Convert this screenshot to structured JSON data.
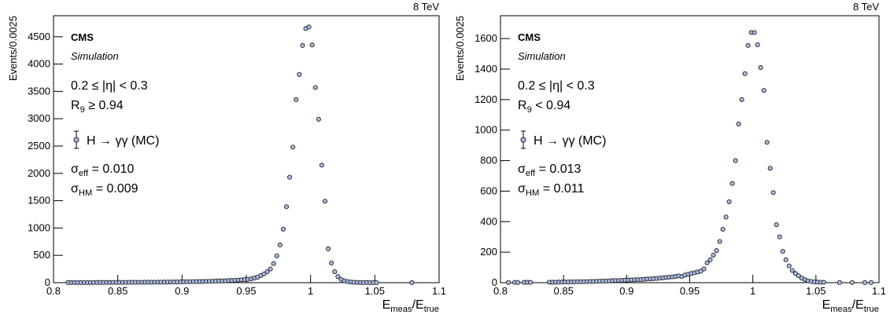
{
  "chart_data": [
    {
      "type": "scatter",
      "energy": "8 TeV",
      "experiment": "CMS",
      "status": "Simulation",
      "annotations": [
        [
          {
            "text": "0.2 ≤ |η| < 0.3"
          }
        ],
        [
          {
            "text": "R"
          },
          {
            "text": "9",
            "sub": true
          },
          {
            "text": " ≥ 0.94"
          }
        ],
        [
          {
            "text": "σ"
          },
          {
            "text": "eff",
            "sub": true
          },
          {
            "text": " = 0.010"
          }
        ],
        [
          {
            "text": "σ"
          },
          {
            "text": "HM",
            "sub": true
          },
          {
            "text": " = 0.009"
          }
        ]
      ],
      "x_label": [
        {
          "text": "E"
        },
        {
          "text": "meas",
          "sub": true
        },
        {
          "text": "/E"
        },
        {
          "text": "true",
          "sub": true
        }
      ],
      "y_label": "Events/0.0025",
      "xlim": [
        0.8,
        1.1
      ],
      "xticks": [
        0.8,
        0.85,
        0.9,
        0.95,
        1,
        1.05,
        1.1
      ],
      "ylim": [
        0,
        4885
      ],
      "yticks": [
        0,
        500,
        1000,
        1500,
        2000,
        2500,
        3000,
        3500,
        4000,
        4500
      ],
      "x": [
        0.81125,
        0.81375,
        0.81625,
        0.81875,
        0.82125,
        0.82375,
        0.82625,
        0.82875,
        0.83125,
        0.83375,
        0.83625,
        0.83875,
        0.84125,
        0.84375,
        0.84625,
        0.84875,
        0.85125,
        0.85375,
        0.85625,
        0.85875,
        0.86125,
        0.86375,
        0.86625,
        0.86875,
        0.87125,
        0.87375,
        0.87625,
        0.87875,
        0.88125,
        0.88375,
        0.88625,
        0.88875,
        0.89125,
        0.89375,
        0.89625,
        0.89875,
        0.90125,
        0.90375,
        0.90625,
        0.90875,
        0.91125,
        0.91375,
        0.91625,
        0.91875,
        0.92125,
        0.92375,
        0.92625,
        0.92875,
        0.93125,
        0.93375,
        0.93625,
        0.93875,
        0.94125,
        0.94375,
        0.94625,
        0.94875,
        0.95125,
        0.95375,
        0.95625,
        0.95875,
        0.96125,
        0.96375,
        0.96625,
        0.96875,
        0.97125,
        0.97375,
        0.97625,
        0.97875,
        0.98125,
        0.98375,
        0.98625,
        0.98875,
        0.99125,
        0.99375,
        0.99625,
        0.99875,
        1.00125,
        1.00375,
        1.00625,
        1.00875,
        1.01125,
        1.01375,
        1.01625,
        1.01875,
        1.02125,
        1.02375,
        1.02625,
        1.02875,
        1.03125,
        1.03375,
        1.03625,
        1.03875,
        1.04125,
        1.04375,
        1.04625,
        1.04875,
        1.05125,
        1.07875
      ],
      "series": [
        {
          "name": "H → γγ (MC)",
          "color": "#a9bde6",
          "values": [
            2,
            2,
            2,
            3,
            2,
            3,
            3,
            3,
            3,
            4,
            3,
            4,
            4,
            4,
            5,
            5,
            5,
            5,
            6,
            6,
            6,
            7,
            7,
            7,
            8,
            8,
            9,
            9,
            10,
            10,
            11,
            12,
            12,
            13,
            14,
            15,
            16,
            17,
            18,
            19,
            20,
            21,
            22,
            24,
            25,
            27,
            29,
            31,
            33,
            35,
            38,
            40,
            44,
            48,
            52,
            56,
            60,
            70,
            85,
            100,
            130,
            160,
            200,
            250,
            350,
            490,
            690,
            980,
            1390,
            1930,
            2480,
            3350,
            3810,
            4340,
            4650,
            4680,
            4350,
            3570,
            2990,
            2150,
            1490,
            620,
            360,
            200,
            110,
            60,
            35,
            20,
            12,
            8,
            5,
            3,
            2,
            2,
            1,
            1,
            1,
            1
          ]
        }
      ]
    },
    {
      "type": "scatter",
      "energy": "8 TeV",
      "experiment": "CMS",
      "status": "Simulation",
      "annotations": [
        [
          {
            "text": "0.2 ≤ |η| < 0.3"
          }
        ],
        [
          {
            "text": "R"
          },
          {
            "text": "9",
            "sub": true
          },
          {
            "text": " < 0.94"
          }
        ],
        [
          {
            "text": "σ"
          },
          {
            "text": "eff",
            "sub": true
          },
          {
            "text": " = 0.013"
          }
        ],
        [
          {
            "text": "σ"
          },
          {
            "text": "HM",
            "sub": true
          },
          {
            "text": " = 0.011"
          }
        ]
      ],
      "x_label": [
        {
          "text": "E"
        },
        {
          "text": "meas",
          "sub": true
        },
        {
          "text": "/E"
        },
        {
          "text": "true",
          "sub": true
        }
      ],
      "y_label": "Events/0.0025",
      "xlim": [
        0.8,
        1.1
      ],
      "xticks": [
        0.8,
        0.85,
        0.9,
        0.95,
        1,
        1.05,
        1.1
      ],
      "ylim": [
        0,
        1750
      ],
      "yticks": [
        0,
        200,
        400,
        600,
        800,
        1000,
        1200,
        1400,
        1600
      ],
      "x": [
        0.80625,
        0.81125,
        0.81375,
        0.81875,
        0.82125,
        0.82375,
        0.83875,
        0.84125,
        0.84375,
        0.84625,
        0.84875,
        0.85125,
        0.85375,
        0.85625,
        0.85875,
        0.86125,
        0.86375,
        0.86625,
        0.86875,
        0.87125,
        0.87375,
        0.87625,
        0.87875,
        0.88125,
        0.88375,
        0.88625,
        0.88875,
        0.89125,
        0.89375,
        0.89625,
        0.89875,
        0.90125,
        0.90375,
        0.90625,
        0.90875,
        0.91125,
        0.91375,
        0.91625,
        0.91875,
        0.92125,
        0.92375,
        0.92625,
        0.92875,
        0.93125,
        0.93375,
        0.93625,
        0.93875,
        0.94125,
        0.94375,
        0.94625,
        0.94875,
        0.95125,
        0.95375,
        0.95625,
        0.95875,
        0.96125,
        0.96375,
        0.96625,
        0.96875,
        0.97125,
        0.97375,
        0.97625,
        0.97875,
        0.98125,
        0.98375,
        0.98625,
        0.98875,
        0.99125,
        0.99375,
        0.99625,
        0.99875,
        1.00125,
        1.00375,
        1.00625,
        1.00875,
        1.01125,
        1.01375,
        1.01625,
        1.01875,
        1.02125,
        1.02375,
        1.02625,
        1.02875,
        1.03125,
        1.03375,
        1.03625,
        1.03875,
        1.04125,
        1.04375,
        1.04625,
        1.04875,
        1.05125,
        1.05375,
        1.05625,
        1.06875,
        1.07875,
        1.08875,
        1.09375
      ],
      "series": [
        {
          "name": "H → γγ (MC)",
          "color": "#a9bde6",
          "values": [
            1,
            2,
            1,
            2,
            2,
            2,
            3,
            3,
            3,
            4,
            4,
            4,
            5,
            5,
            5,
            6,
            6,
            7,
            7,
            8,
            8,
            9,
            10,
            10,
            11,
            12,
            13,
            14,
            14,
            15,
            16,
            17,
            18,
            19,
            20,
            21,
            22,
            24,
            25,
            26,
            28,
            30,
            32,
            34,
            36,
            38,
            41,
            44,
            40,
            50,
            55,
            60,
            65,
            70,
            75,
            90,
            130,
            150,
            180,
            210,
            270,
            350,
            430,
            530,
            650,
            800,
            1040,
            1200,
            1370,
            1555,
            1640,
            1640,
            1560,
            1410,
            1260,
            920,
            750,
            590,
            380,
            300,
            205,
            150,
            110,
            80,
            60,
            45,
            30,
            20,
            12,
            8,
            5,
            4,
            3,
            2,
            1,
            1,
            1,
            1
          ]
        }
      ]
    }
  ]
}
